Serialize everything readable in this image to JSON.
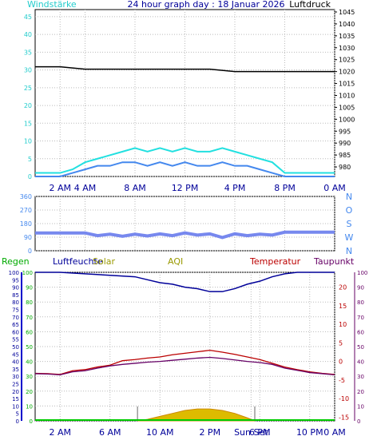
{
  "colors": {
    "cyan": "#22e0e0",
    "blue": "#4488ee",
    "navy": "#000099",
    "red": "#bb0000",
    "purple": "#660066",
    "green": "#00aa00",
    "olive": "#999900",
    "plot_bg": "#ffffff",
    "page_bg": "#ffffff"
  },
  "chart_data": [
    {
      "type": "line",
      "name": "wind-pressure",
      "title": "24 hour graph day : 18 Januar 2026",
      "left_label": "Windstärke",
      "right_label": "Luftdruck",
      "y_left": {
        "min": 0,
        "max": 47,
        "ticks": [
          "0",
          "5",
          "10",
          "15",
          "20",
          "25",
          "30",
          "35",
          "40",
          "45"
        ]
      },
      "y_right": {
        "min": 976,
        "max": 1046,
        "ticks": [
          "980",
          "985",
          "990",
          "995",
          "1000",
          "1005",
          "1010",
          "1015",
          "1020",
          "1025",
          "1030",
          "1035",
          "1040",
          "1045"
        ]
      },
      "x_ticks": [
        "2 AM",
        "4 AM",
        "8 AM",
        "12 PM",
        "4 PM",
        "8 PM",
        "0 AM"
      ],
      "x_tick_hours": [
        2,
        4,
        8,
        12,
        16,
        20,
        24
      ],
      "series": [
        {
          "name": "Luftdruck",
          "points_h": [
            0,
            2,
            4,
            6,
            8,
            10,
            12,
            14,
            16,
            18,
            20,
            22,
            24
          ],
          "values": [
            1022,
            1022,
            1021,
            1021,
            1021,
            1021,
            1021,
            1021,
            1020,
            1020,
            1020,
            1020,
            1020
          ]
        },
        {
          "points_h": [
            0,
            1,
            2,
            3,
            4,
            5,
            6,
            7,
            8,
            9,
            10,
            11,
            12,
            13,
            14,
            15,
            16,
            17,
            18,
            19,
            20,
            21,
            22,
            23,
            24
          ],
          "values": [
            1,
            1,
            1,
            2,
            4,
            5,
            6,
            7,
            8,
            7,
            8,
            7,
            8,
            7,
            7,
            8,
            7,
            6,
            5,
            4,
            1,
            1,
            1,
            1,
            1
          ]
        },
        {
          "points_h": [
            0,
            1,
            2,
            3,
            4,
            5,
            6,
            7,
            8,
            9,
            10,
            11,
            12,
            13,
            14,
            15,
            16,
            17,
            18,
            19,
            20,
            21,
            22,
            23,
            24
          ],
          "values": [
            0,
            0,
            0,
            1,
            2,
            3,
            3,
            4,
            4,
            3,
            4,
            3,
            4,
            3,
            3,
            4,
            3,
            3,
            2,
            1,
            0,
            0,
            0,
            0,
            0
          ]
        }
      ]
    },
    {
      "type": "line",
      "name": "wind-direction",
      "y_left_ticks": [
        "0",
        "90",
        "180",
        "270",
        "360"
      ],
      "right_labels": [
        "N",
        "W",
        "S",
        "O",
        "N"
      ],
      "series": [
        {
          "name": "direction",
          "points_h": [
            0,
            1,
            2,
            3,
            4,
            5,
            6,
            7,
            8,
            9,
            10,
            11,
            12,
            13,
            14,
            15,
            16,
            17,
            18,
            19,
            20,
            21,
            22,
            23,
            24
          ],
          "values": [
            118,
            118,
            118,
            118,
            118,
            100,
            110,
            96,
            110,
            98,
            112,
            100,
            118,
            104,
            112,
            88,
            112,
            100,
            110,
            104,
            123,
            123,
            123,
            123,
            123
          ]
        }
      ]
    },
    {
      "type": "line",
      "name": "temperature-humidity",
      "labels": {
        "regen": "Regen",
        "luftfeuchte": "Luftfeuchte",
        "solar": "Solar",
        "aqi": "AQI",
        "temperatur": "Temperatur",
        "taupunkt": "Taupunkt"
      },
      "y_left": {
        "min": 0,
        "max": 100,
        "ticks": [
          "0",
          "5",
          "10",
          "15",
          "20",
          "25",
          "30",
          "35",
          "40",
          "45",
          "50",
          "55",
          "60",
          "65",
          "70",
          "75",
          "80",
          "85",
          "90",
          "95",
          "100"
        ]
      },
      "y_humidity": {
        "min": 0,
        "max": 100,
        "ticks": [
          "0",
          "10",
          "20",
          "30",
          "40",
          "50",
          "60",
          "70",
          "80",
          "90",
          "100"
        ]
      },
      "y_right": {
        "min": -16,
        "max": 24,
        "ticks": [
          "-15",
          "-10",
          "-5",
          "0",
          "5",
          "10",
          "15",
          "20"
        ]
      },
      "y_far_right_ticks": [
        "0",
        "10",
        "20",
        "30",
        "40",
        "50",
        "60",
        "70",
        "80",
        "90",
        "100"
      ],
      "x_ticks": [
        "2 AM",
        "6 AM",
        "10 AM",
        "2 PM",
        "Sun Set",
        "6 PM",
        "10 PM",
        "0 AM"
      ],
      "x_tick_hours": [
        2,
        6,
        10,
        14,
        17.3,
        18,
        22,
        24
      ],
      "sun_markers_h": [
        8.2,
        17.6
      ],
      "series": [
        {
          "name": "Luftfeuchte",
          "points_h": [
            0,
            2,
            4,
            6,
            8,
            9,
            10,
            11,
            12,
            13,
            14,
            15,
            16,
            17,
            18,
            19,
            20,
            21,
            22,
            23,
            24
          ],
          "values": [
            100,
            100,
            99,
            98,
            97,
            95,
            93,
            92,
            90,
            89,
            87,
            87,
            89,
            92,
            94,
            97,
            99,
            100,
            100,
            100,
            100
          ]
        },
        {
          "name": "Temperatur",
          "points_h": [
            0,
            1,
            2,
            3,
            4,
            5,
            6,
            7,
            8,
            9,
            10,
            11,
            12,
            13,
            14,
            15,
            16,
            17,
            18,
            19,
            20,
            21,
            22,
            23,
            24
          ],
          "values": [
            -3.2,
            -3.3,
            -3.5,
            -2.5,
            -2.2,
            -1.5,
            -1.0,
            0.2,
            0.5,
            0.9,
            1.2,
            1.8,
            2.2,
            2.6,
            3.0,
            2.5,
            1.9,
            1.2,
            0.5,
            -0.5,
            -1.5,
            -2.2,
            -2.8,
            -3.2,
            -3.5
          ]
        },
        {
          "name": "Taupunkt",
          "points_h": [
            0,
            1,
            2,
            3,
            4,
            5,
            6,
            7,
            8,
            9,
            10,
            11,
            12,
            13,
            14,
            15,
            16,
            17,
            18,
            19,
            20,
            21,
            22,
            23,
            24
          ],
          "values": [
            -3.3,
            -3.4,
            -3.6,
            -2.8,
            -2.5,
            -1.8,
            -1.2,
            -0.8,
            -0.5,
            -0.2,
            0.0,
            0.3,
            0.6,
            0.9,
            1.1,
            0.8,
            0.4,
            0.0,
            -0.3,
            -0.8,
            -1.8,
            -2.4,
            -3.0,
            -3.3,
            -3.6
          ]
        },
        {
          "name": "Solar",
          "points_h": [
            8.2,
            9,
            10,
            11,
            12,
            13,
            14,
            15,
            16,
            17,
            17.6
          ],
          "values": [
            0,
            1,
            3,
            5,
            7,
            8,
            8,
            7,
            5,
            2,
            0
          ]
        }
      ]
    }
  ]
}
